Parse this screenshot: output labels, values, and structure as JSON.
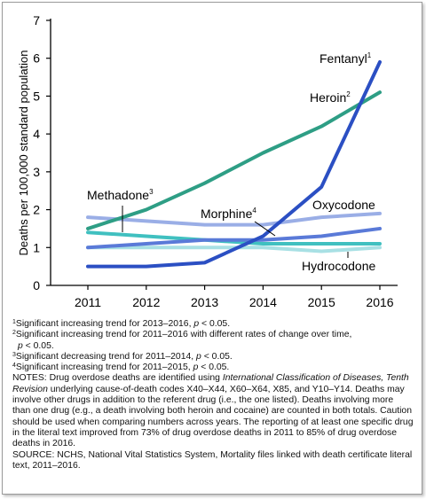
{
  "chart_data": {
    "type": "line",
    "ylabel": "Deaths per 100,000 standard population",
    "x": [
      2011,
      2012,
      2013,
      2014,
      2015,
      2016
    ],
    "xticks": [
      "2011",
      "2012",
      "2013",
      "2014",
      "2015",
      "2016"
    ],
    "yticks": [
      "0",
      "1",
      "2",
      "3",
      "4",
      "5",
      "6",
      "7"
    ],
    "ylim": [
      0,
      7
    ],
    "grid": false,
    "series": [
      {
        "name": "Fentanyl",
        "sup": "1",
        "color": "#2b4fc3",
        "values": [
          0.5,
          0.5,
          0.6,
          1.3,
          2.6,
          5.9
        ]
      },
      {
        "name": "Heroin",
        "sup": "2",
        "color": "#2e9e85",
        "values": [
          1.5,
          2.0,
          2.7,
          3.5,
          4.2,
          5.1
        ]
      },
      {
        "name": "Oxycodone",
        "sup": "",
        "color": "#9aaee6",
        "values": [
          1.8,
          1.7,
          1.6,
          1.6,
          1.8,
          1.9
        ]
      },
      {
        "name": "Methadone",
        "sup": "3",
        "color": "#40c0c0",
        "values": [
          1.4,
          1.3,
          1.2,
          1.1,
          1.1,
          1.1
        ]
      },
      {
        "name": "Morphine",
        "sup": "4",
        "color": "#5a7ad8",
        "values": [
          1.0,
          1.1,
          1.2,
          1.2,
          1.3,
          1.5
        ]
      },
      {
        "name": "Hydrocodone",
        "sup": "",
        "color": "#a8e0e4",
        "values": [
          1.0,
          1.0,
          1.0,
          1.0,
          0.9,
          1.0
        ]
      }
    ]
  },
  "notes": {
    "n1_sup": "1",
    "n1_a": "Significant increasing trend for 2013–2016, ",
    "n1_p": "p",
    "n1_b": " < 0.05.",
    "n2_sup": "2",
    "n2_a": "Significant increasing trend for 2011–2016 with different rates of change over time,",
    "n2_p": "p",
    "n2_b": " < 0.05.",
    "n3_sup": "3",
    "n3_a": "Significant decreasing trend for 2011–2014, ",
    "n3_p": "p",
    "n3_b": " < 0.05.",
    "n4_sup": "4",
    "n4_a": "Significant increasing trend for 2011–2015, ",
    "n4_p": "p",
    "n4_b": " < 0.05.",
    "notes_a": "NOTES: Drug overdose deaths are identified using ",
    "notes_i": "International Classification of Diseases, Tenth Revision",
    "notes_b": " underlying cause-of-death codes X40–X44, X60–X64, X85, and Y10–Y14. Deaths may involve other drugs in addition to the referent drug (i.e., the one listed). Deaths involving more than one drug (e.g., a death involving both heroin and cocaine) are counted in both totals. Caution should be used when comparing numbers across years. The reporting of at least one specific drug in the literal text improved from 73% of drug overdose deaths in 2011 to 85% of drug overdose deaths in 2016.",
    "source": "SOURCE: NCHS, National Vital Statistics System, Mortality files linked with death certificate literal text, 2011–2016."
  }
}
